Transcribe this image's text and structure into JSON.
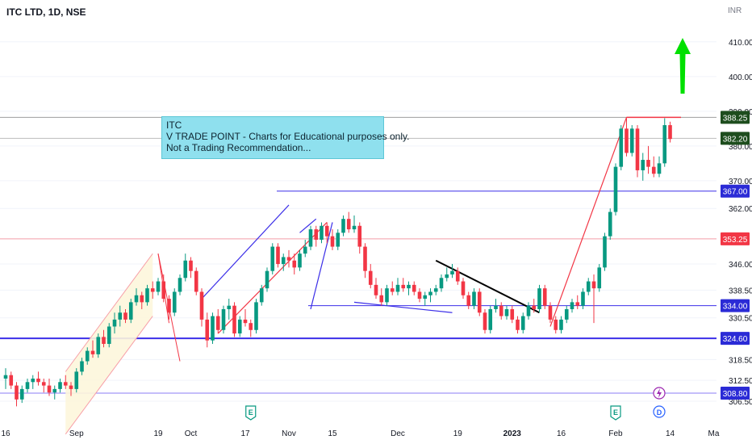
{
  "header": {
    "title": "ITC LTD, 1D, NSE"
  },
  "note": {
    "line1": "ITC",
    "line2": "V TRADE POINT - Charts for Educational purposes only.",
    "line3": "Not a Trading Recommendation..."
  },
  "colors": {
    "up": "#089981",
    "down": "#f23645",
    "grid": "#f0f3fa",
    "blue_line": "#3c2fe8",
    "red_line": "#f23645",
    "accent_green": "#00e000"
  },
  "chart_data": {
    "type": "candlestick",
    "title": "ITC LTD, 1D, NSE",
    "y_unit": "INR",
    "ylim": [
      303,
      416
    ],
    "y_ticks": [
      410.0,
      400.0,
      390.0,
      380.0,
      370.0,
      362.0,
      353.25,
      346.0,
      338.5,
      330.5,
      324.6,
      318.5,
      312.5,
      306.5
    ],
    "x_ticks": [
      "16",
      "Sep",
      "19",
      "Oct",
      "17",
      "Nov",
      "15",
      "Dec",
      "19",
      "2023",
      "16",
      "Feb",
      "14",
      "Ma"
    ],
    "price_labels": [
      {
        "value": 388.25,
        "text": "388.25",
        "color": "#1d4d1d"
      },
      {
        "value": 382.2,
        "text": "382.20",
        "color": "#1d4d1d"
      },
      {
        "value": 367.0,
        "text": "367.00",
        "color": "#2b2bd6"
      },
      {
        "value": 353.25,
        "text": "353.25",
        "color": "#f23645"
      },
      {
        "value": 334.0,
        "text": "334.00",
        "color": "#2b2bd6"
      },
      {
        "value": 324.6,
        "text": "324.60",
        "color": "#2b2bd6"
      },
      {
        "value": 308.8,
        "text": "308.80",
        "color": "#2b2bd6"
      }
    ],
    "horizontal_levels": [
      388.25,
      382.2,
      367.0,
      353.25,
      334.0,
      324.6,
      308.8
    ],
    "event_markers": [
      "E",
      "E",
      "D"
    ],
    "candles": [
      [
        313,
        316,
        310,
        314
      ],
      [
        314,
        315,
        310,
        311
      ],
      [
        311,
        312,
        305,
        307
      ],
      [
        307,
        311,
        306,
        310
      ],
      [
        310,
        313,
        309,
        312
      ],
      [
        312,
        314,
        310,
        313
      ],
      [
        313,
        315,
        311,
        312
      ],
      [
        312,
        313,
        309,
        311
      ],
      [
        311,
        313,
        308,
        309
      ],
      [
        309,
        311,
        307,
        310
      ],
      [
        310,
        313,
        309,
        312
      ],
      [
        312,
        314,
        310,
        311
      ],
      [
        311,
        312,
        308,
        310
      ],
      [
        310,
        316,
        309,
        315
      ],
      [
        315,
        319,
        314,
        318
      ],
      [
        318,
        322,
        317,
        321
      ],
      [
        321,
        324,
        319,
        320
      ],
      [
        320,
        326,
        319,
        325
      ],
      [
        325,
        327,
        322,
        323
      ],
      [
        323,
        329,
        322,
        328
      ],
      [
        328,
        332,
        326,
        330
      ],
      [
        330,
        334,
        328,
        332
      ],
      [
        332,
        333,
        329,
        330
      ],
      [
        330,
        336,
        329,
        335
      ],
      [
        335,
        339,
        334,
        337
      ],
      [
        337,
        338,
        333,
        335
      ],
      [
        335,
        340,
        334,
        339
      ],
      [
        339,
        341,
        336,
        338
      ],
      [
        338,
        342,
        337,
        341
      ],
      [
        341,
        343,
        335,
        336
      ],
      [
        336,
        337,
        330,
        332
      ],
      [
        332,
        339,
        331,
        338
      ],
      [
        338,
        343,
        337,
        342
      ],
      [
        342,
        349,
        341,
        347
      ],
      [
        347,
        348,
        342,
        344
      ],
      [
        344,
        345,
        337,
        338
      ],
      [
        338,
        339,
        328,
        330
      ],
      [
        330,
        332,
        322,
        324
      ],
      [
        324,
        332,
        323,
        331
      ],
      [
        331,
        333,
        326,
        327
      ],
      [
        327,
        334,
        326,
        333
      ],
      [
        333,
        336,
        330,
        334
      ],
      [
        334,
        335,
        325,
        326
      ],
      [
        326,
        331,
        325,
        330
      ],
      [
        330,
        333,
        328,
        329
      ],
      [
        329,
        330,
        325,
        327
      ],
      [
        327,
        336,
        326,
        335
      ],
      [
        335,
        340,
        334,
        339
      ],
      [
        339,
        345,
        338,
        344
      ],
      [
        344,
        352,
        343,
        351
      ],
      [
        351,
        352,
        345,
        346
      ],
      [
        346,
        349,
        344,
        348
      ],
      [
        348,
        350,
        345,
        347
      ],
      [
        347,
        349,
        343,
        345
      ],
      [
        345,
        350,
        344,
        349
      ],
      [
        349,
        353,
        348,
        351
      ],
      [
        351,
        357,
        350,
        356
      ],
      [
        356,
        357,
        351,
        353
      ],
      [
        353,
        358,
        352,
        357
      ],
      [
        357,
        358,
        352,
        354
      ],
      [
        354,
        356,
        350,
        351
      ],
      [
        351,
        356,
        350,
        355
      ],
      [
        355,
        360,
        354,
        359
      ],
      [
        359,
        361,
        355,
        356
      ],
      [
        356,
        360,
        355,
        357
      ],
      [
        357,
        358,
        349,
        351
      ],
      [
        351,
        352,
        342,
        344
      ],
      [
        344,
        346,
        339,
        340
      ],
      [
        340,
        342,
        336,
        337
      ],
      [
        337,
        339,
        334,
        335
      ],
      [
        335,
        340,
        334,
        339
      ],
      [
        339,
        341,
        337,
        338
      ],
      [
        338,
        342,
        337,
        340
      ],
      [
        340,
        342,
        338,
        339
      ],
      [
        339,
        341,
        337,
        340
      ],
      [
        340,
        341,
        337,
        338
      ],
      [
        338,
        339,
        335,
        336
      ],
      [
        336,
        338,
        334,
        337
      ],
      [
        337,
        339,
        335,
        338
      ],
      [
        338,
        340,
        337,
        339
      ],
      [
        339,
        343,
        338,
        342
      ],
      [
        342,
        345,
        341,
        343
      ],
      [
        343,
        346,
        342,
        344
      ],
      [
        344,
        345,
        340,
        341
      ],
      [
        341,
        342,
        336,
        337
      ],
      [
        337,
        338,
        333,
        334
      ],
      [
        334,
        339,
        333,
        338
      ],
      [
        338,
        339,
        331,
        332
      ],
      [
        332,
        333,
        326,
        327
      ],
      [
        327,
        334,
        326,
        333
      ],
      [
        333,
        336,
        332,
        334
      ],
      [
        334,
        335,
        330,
        331
      ],
      [
        331,
        334,
        330,
        333
      ],
      [
        333,
        334,
        329,
        330
      ],
      [
        330,
        331,
        326,
        327
      ],
      [
        327,
        332,
        326,
        331
      ],
      [
        331,
        335,
        330,
        334
      ],
      [
        334,
        336,
        332,
        333
      ],
      [
        333,
        340,
        332,
        339
      ],
      [
        339,
        340,
        333,
        334
      ],
      [
        334,
        335,
        329,
        330
      ],
      [
        330,
        331,
        326,
        327
      ],
      [
        327,
        331,
        326,
        330
      ],
      [
        330,
        334,
        329,
        333
      ],
      [
        333,
        336,
        332,
        335
      ],
      [
        335,
        337,
        333,
        334
      ],
      [
        334,
        339,
        333,
        338
      ],
      [
        338,
        342,
        337,
        341
      ],
      [
        341,
        343,
        329,
        339
      ],
      [
        339,
        346,
        338,
        345
      ],
      [
        345,
        355,
        344,
        354
      ],
      [
        354,
        362,
        353,
        361
      ],
      [
        361,
        375,
        360,
        374
      ],
      [
        374,
        386,
        373,
        385
      ],
      [
        385,
        388,
        377,
        378
      ],
      [
        378,
        386,
        377,
        385
      ],
      [
        385,
        386,
        371,
        373
      ],
      [
        373,
        378,
        370,
        376
      ],
      [
        376,
        380,
        372,
        374
      ],
      [
        374,
        377,
        371,
        372
      ],
      [
        372,
        377,
        371,
        375
      ],
      [
        375,
        388,
        374,
        386
      ],
      [
        386,
        387,
        381,
        382
      ]
    ]
  }
}
